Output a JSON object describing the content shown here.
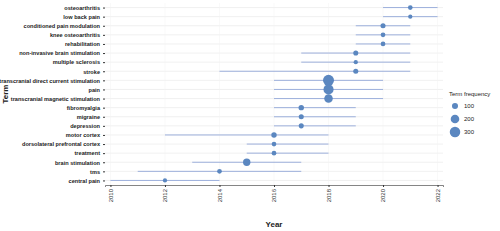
{
  "chart_data": {
    "type": "range",
    "orientation": "horizontal",
    "x_label": "Year",
    "y_label": "Term",
    "categories": [
      "osteoarthritis",
      "low back pain",
      "conditioned pain modulation",
      "knee osteoarthritis",
      "rehabilitation",
      "non-invasive brain stimulation",
      "multiple sclerosis",
      "stroke",
      "transcranial direct current stimulation",
      "pain",
      "transcranial magnetic stimulation",
      "fibromyalgia",
      "migraine",
      "depression",
      "motor cortex",
      "dorsolateral prefrontal cortex",
      "treatment",
      "brain stimulation",
      "tms",
      "central pain"
    ],
    "values": [
      2021,
      2021,
      2020,
      2020,
      2020,
      2019,
      2019,
      2019,
      2018,
      2018,
      2018,
      2017,
      2017,
      2017,
      2016,
      2016,
      2016,
      2015,
      2014,
      2012
    ],
    "low": [
      2020,
      2020,
      2019,
      2019,
      2019,
      2017,
      2017,
      2014,
      2016,
      2016,
      2016,
      2016,
      2016,
      2016,
      2012,
      2015,
      2015,
      2013,
      2011,
      2010
    ],
    "high": [
      2022,
      2022,
      2021,
      2021,
      2021,
      2021,
      2021,
      2021,
      2020,
      2020,
      2020,
      2019,
      2019,
      2019,
      2018,
      2018,
      2018,
      2017,
      2017,
      2014
    ],
    "size": [
      60,
      50,
      70,
      60,
      60,
      70,
      50,
      70,
      330,
      280,
      200,
      80,
      70,
      70,
      80,
      60,
      60,
      150,
      60,
      50
    ],
    "size_title": "Term frequency",
    "size_ticks": [
      100,
      200,
      300
    ],
    "color": "#5b87c0",
    "xlim": [
      2009.8,
      2022.2
    ],
    "xticks": [
      2010,
      2012,
      2014,
      2016,
      2018,
      2020,
      2022
    ],
    "grid": true
  }
}
